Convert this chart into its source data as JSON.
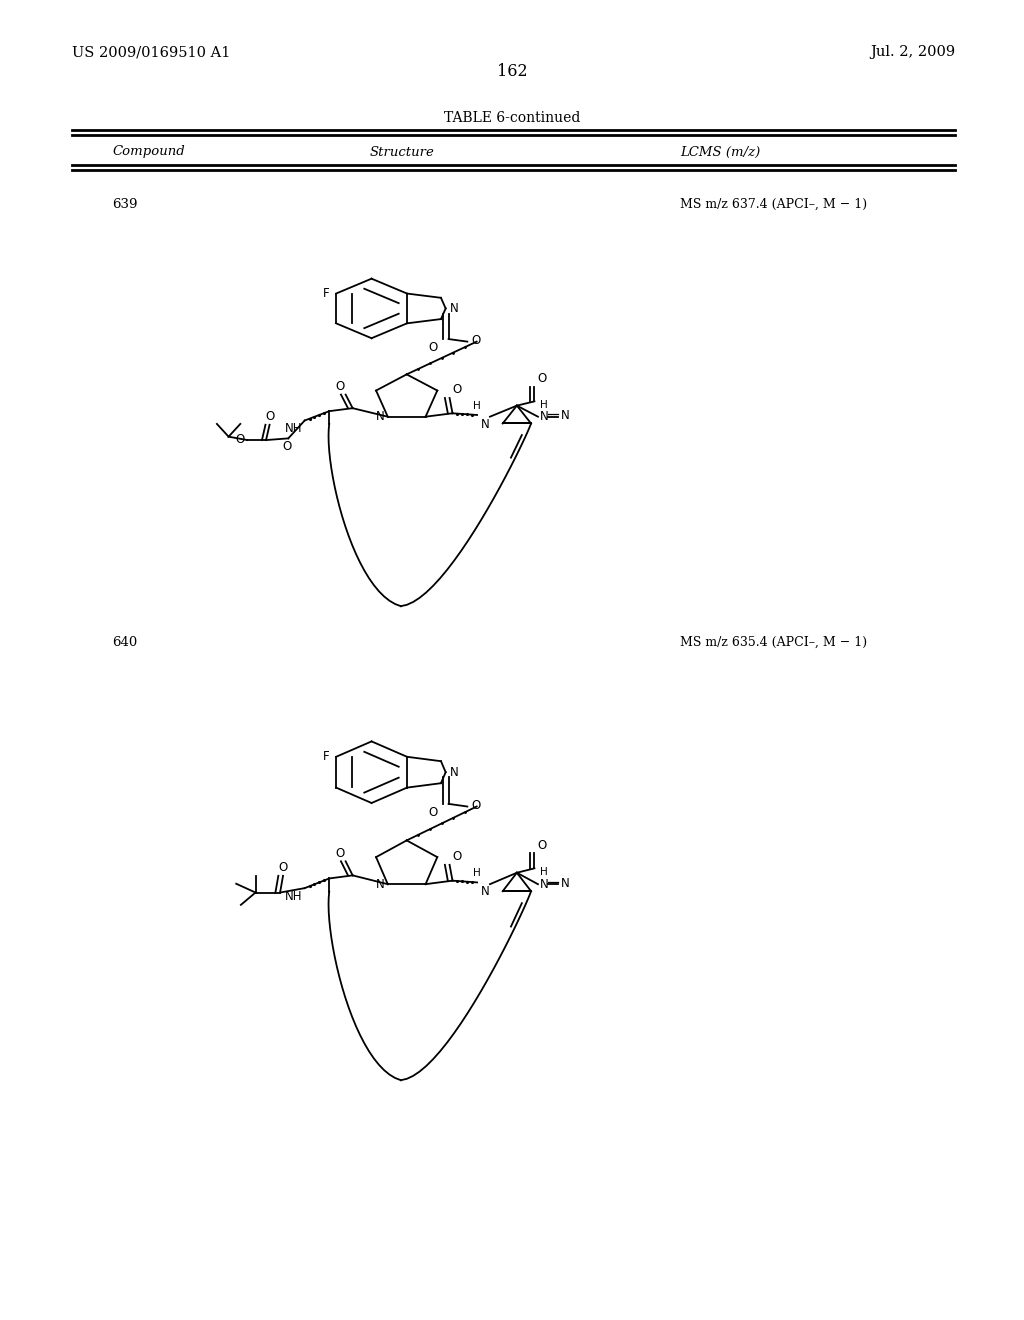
{
  "page_left_header": "US 2009/0169510 A1",
  "page_right_header": "Jul. 2, 2009",
  "page_number": "162",
  "table_title": "TABLE 6-continued",
  "col_headers": [
    "Compound",
    "Structure",
    "LCMS (m/z)"
  ],
  "compounds": [
    {
      "id": "639",
      "lcms": "MS m/z 637.4 (APCI–, M − 1)",
      "use_isopropyl": true
    },
    {
      "id": "640",
      "lcms": "MS m/z 635.4 (APCI–, M − 1)",
      "use_isopropyl": false
    }
  ],
  "bg_color": "#ffffff",
  "text_color": "#000000"
}
